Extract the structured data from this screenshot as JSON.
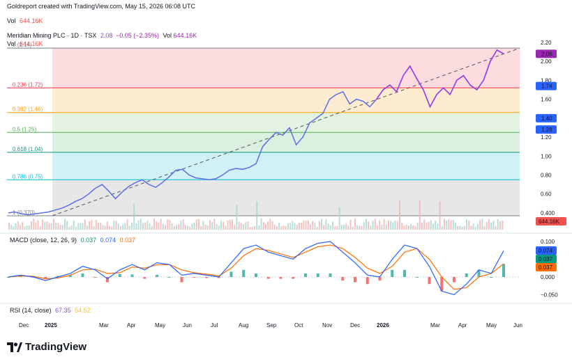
{
  "header": {
    "created": "Goldreport created with TradingView.com, May 15, 2026 06:08 UTC",
    "vol_label": "Vol",
    "vol_value": "644.16K"
  },
  "legend": {
    "symbol": "Meridian Mining PLC · 1D · TSX",
    "last": "2.08",
    "change": "−0.05 (−2.35%)",
    "vol_label": "Vol",
    "vol_value": "644.16K"
  },
  "macd_legend": {
    "name": "MACD (close, 12, 26, 9)",
    "v1": "0.037",
    "v2": "0.074",
    "v3": "0.037"
  },
  "rsi_legend": {
    "name": "RSI (14, close)",
    "v1": "67.35",
    "v2": "54.52"
  },
  "logo": "TradingView",
  "colors": {
    "price": "#5b6ee8",
    "price_end": "#9c3ce6",
    "macd": "#2962ff",
    "signal": "#ff6d00",
    "hist_up": "#26a69a",
    "hist_down": "#ef5350",
    "volume": "#b5b2e8"
  },
  "chart_data": [
    {
      "type": "line",
      "title": "Meridian Mining PLC · 1D · TSX",
      "xlabel": "",
      "ylabel": "",
      "x_ticks": [
        "Dec",
        "2025",
        "Mar",
        "Apr",
        "May",
        "Jun",
        "Jul",
        "Aug",
        "Sep",
        "Oct",
        "Nov",
        "Dec",
        "2026",
        "Mar",
        "Apr",
        "May",
        "Jun"
      ],
      "y_ticks": [
        "2.20",
        "2.00",
        "1.80",
        "1.60",
        "1.20",
        "1.00",
        "0.80",
        "0.60",
        "0.400"
      ],
      "ylim": [
        0.37,
        2.2
      ],
      "price_tags": [
        "2.08",
        "1.74",
        "1.40",
        "1.28"
      ],
      "series": [
        {
          "values": [
            0.4,
            0.41,
            0.39,
            0.38,
            0.39,
            0.4,
            0.41,
            0.43,
            0.45,
            0.48,
            0.52,
            0.55,
            0.6,
            0.66,
            0.7,
            0.63,
            0.55,
            0.62,
            0.68,
            0.72,
            0.75,
            0.7,
            0.67,
            0.72,
            0.78,
            0.85,
            0.86,
            0.8,
            0.77,
            0.76,
            0.75,
            0.76,
            0.8,
            0.85,
            0.87,
            0.86,
            0.88,
            0.92,
            1.1,
            1.18,
            1.25,
            1.22,
            1.3,
            1.12,
            1.2,
            1.35,
            1.4,
            1.45,
            1.6,
            1.65,
            1.68,
            1.55,
            1.6,
            1.58,
            1.52,
            1.6,
            1.7,
            1.75,
            1.68,
            1.85,
            1.95,
            1.82,
            1.7,
            1.52,
            1.65,
            1.72,
            1.65,
            1.8,
            1.85,
            1.75,
            1.7,
            1.8,
            2.0,
            2.12,
            2.08
          ]
        }
      ],
      "fibonacci": [
        {
          "label": "0 (2.14)",
          "value": 2.14,
          "color": "#787b86"
        },
        {
          "label": "0.236 (1.72)",
          "value": 1.72,
          "color": "#f23645"
        },
        {
          "label": "0.382 (1.46)",
          "value": 1.46,
          "color": "#ff9800"
        },
        {
          "label": "0.5 (1.25)",
          "value": 1.25,
          "color": "#4caf50"
        },
        {
          "label": "0.618 (1.04)",
          "value": 1.04,
          "color": "#089981"
        },
        {
          "label": "0.786 (0.75)",
          "value": 0.75,
          "color": "#00bcd4"
        },
        {
          "label": "1 (0.370)",
          "value": 0.37,
          "color": "#787b86"
        }
      ]
    },
    {
      "type": "line",
      "title": "MACD (close, 12, 26, 9)",
      "y_ticks": [
        "0.100",
        "0.050",
        "0.000",
        "−0.050"
      ],
      "ylim": [
        -0.06,
        0.105
      ],
      "price_tags": [
        "0.074",
        "0.037",
        "0.037"
      ],
      "series": [
        {
          "name": "MACD",
          "values": [
            0.0,
            0.005,
            0.0,
            -0.01,
            0.0,
            0.01,
            0.03,
            0.02,
            -0.005,
            0.02,
            0.035,
            0.02,
            0.04,
            0.035,
            0.005,
            0.01,
            0.005,
            0.0,
            0.04,
            0.08,
            0.09,
            0.07,
            0.06,
            0.05,
            0.08,
            0.095,
            0.1,
            0.07,
            0.04,
            0.005,
            0.0,
            0.05,
            0.09,
            0.08,
            0.03,
            -0.04,
            -0.05,
            -0.02,
            0.02,
            0.01,
            0.074
          ]
        },
        {
          "name": "Signal",
          "values": [
            0.0,
            0.003,
            0.002,
            -0.005,
            -0.003,
            0.005,
            0.02,
            0.022,
            0.01,
            0.012,
            0.028,
            0.025,
            0.034,
            0.035,
            0.02,
            0.012,
            0.008,
            0.003,
            0.025,
            0.06,
            0.08,
            0.075,
            0.065,
            0.055,
            0.07,
            0.085,
            0.09,
            0.08,
            0.055,
            0.025,
            0.01,
            0.03,
            0.07,
            0.08,
            0.05,
            0.0,
            -0.035,
            -0.03,
            0.0,
            0.01,
            0.037
          ]
        }
      ]
    },
    {
      "type": "line",
      "title": "RSI (14, close)",
      "series": [
        {
          "name": "RSI",
          "values": []
        }
      ]
    }
  ]
}
